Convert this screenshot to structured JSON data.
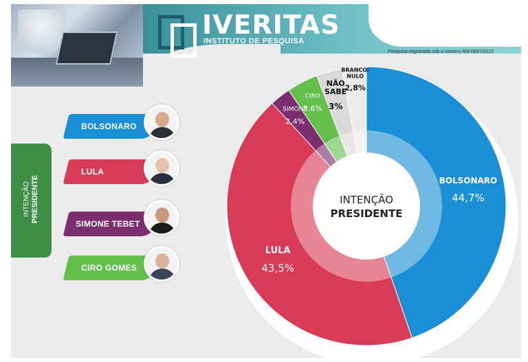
{
  "header": {
    "brand": "IVERITAS",
    "subtitle": "INSTITUTO DE PESQUISA",
    "registration": "Pesquisa registrada sob o número AM-0897/2022"
  },
  "side_tab": {
    "line1": "INTENÇÃO",
    "line2": "PRESIDENTE"
  },
  "candidates": [
    {
      "label": "BOLSONARO",
      "color": "#1a8fd6"
    },
    {
      "label": "LULA",
      "color": "#d93a55"
    },
    {
      "label": "SIMONE TEBET",
      "color": "#7d2e70"
    },
    {
      "label": "CIRO GOMES",
      "color": "#63be4c"
    }
  ],
  "chart_data": {
    "type": "pie",
    "center_label": {
      "line1": "INTENÇÃO",
      "line2": "PRESIDENTE"
    },
    "slices": [
      {
        "name": "BOLSONARO",
        "label": "BOLSONARO",
        "value": 44.7,
        "value_label": "44,7%",
        "color": "#1a8fd6"
      },
      {
        "name": "LULA",
        "label": "LULA",
        "value": 43.5,
        "value_label": "43,5%",
        "color": "#d93a55"
      },
      {
        "name": "SIMONE",
        "label": "SIMONE",
        "value": 2.4,
        "value_label": "2,4%",
        "color": "#7d2e70"
      },
      {
        "name": "CIRO",
        "label": "CIRO",
        "value": 3.6,
        "value_label": "3,6%",
        "color": "#63be4c"
      },
      {
        "name": "NÃO SABE",
        "label": "NÃO SABE",
        "value": 3.0,
        "value_label": "3%",
        "color": "#d9d9d9"
      },
      {
        "name": "BRANCO/NULO",
        "label": "BRANCO/ NULO",
        "value": 2.8,
        "value_label": "2,8%",
        "color": "#ececec"
      }
    ]
  }
}
